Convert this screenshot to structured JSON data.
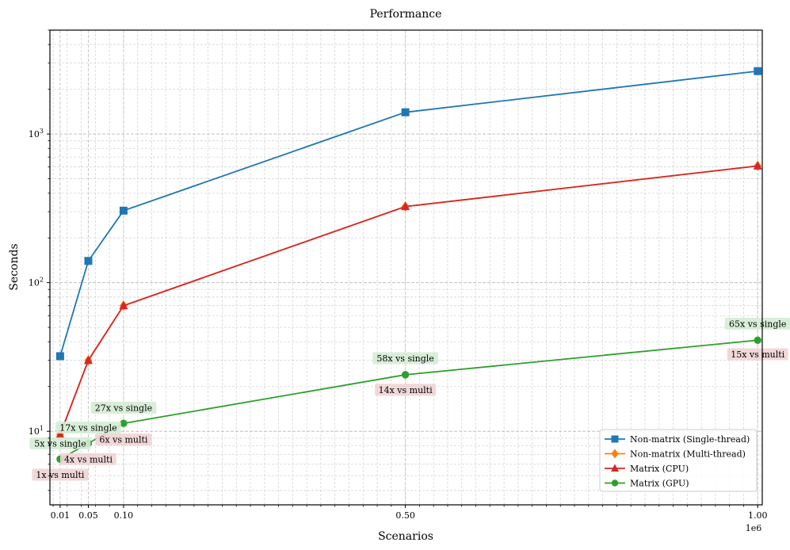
{
  "chart_data": {
    "type": "line",
    "title": "Performance",
    "xlabel": "Scenarios",
    "ylabel": "Seconds",
    "x_offset_label": "1e6",
    "x": [
      0.01,
      0.05,
      0.1,
      0.5,
      1.0
    ],
    "x_tick_labels": [
      "0.01",
      "0.05",
      "0.10",
      "0.50",
      "1.00"
    ],
    "xlim": [
      -0.0045,
      1.0065
    ],
    "yscale": "log",
    "ylim": [
      3.2,
      5000
    ],
    "y_major_ticks": [
      {
        "value": 10,
        "base": "10",
        "exp": "1"
      },
      {
        "value": 100,
        "base": "10",
        "exp": "2"
      },
      {
        "value": 1000,
        "base": "10",
        "exp": "3"
      }
    ],
    "grid": true,
    "legend_position": "lower-right",
    "series": [
      {
        "name": "Non-matrix (Single-thread)",
        "color": "#1f77b4",
        "marker": "square",
        "values": [
          32,
          140,
          305,
          1400,
          2650
        ]
      },
      {
        "name": "Non-matrix (Multi-thread)",
        "color": "#ff7f0e",
        "marker": "diamond",
        "values": [
          9.5,
          30,
          70,
          325,
          610
        ]
      },
      {
        "name": "Matrix (CPU)",
        "color": "#d62728",
        "marker": "triangle",
        "values": [
          9.5,
          30,
          70,
          325,
          610
        ]
      },
      {
        "name": "Matrix (GPU)",
        "color": "#2ca02c",
        "marker": "circle",
        "values": [
          6.5,
          8.3,
          11.3,
          24,
          41
        ]
      }
    ],
    "annotations": {
      "vs_single": {
        "color": "#d4ecd4",
        "items": [
          {
            "text": "5x vs single",
            "x": 0.01,
            "y": 8.3
          },
          {
            "text": "17x vs single",
            "x": 0.05,
            "y": 10.6
          },
          {
            "text": "27x vs single",
            "x": 0.1,
            "y": 14.4
          },
          {
            "text": "58x vs single",
            "x": 0.5,
            "y": 31
          },
          {
            "text": "65x vs single",
            "x": 1.0,
            "y": 53
          }
        ]
      },
      "vs_multi": {
        "color": "#f0d4d4",
        "items": [
          {
            "text": "1x vs multi",
            "x": 0.01,
            "y": 5.1
          },
          {
            "text": "4x vs multi",
            "x": 0.05,
            "y": 6.5
          },
          {
            "text": "6x vs multi",
            "x": 0.1,
            "y": 8.8
          },
          {
            "text": "14x vs multi",
            "x": 0.5,
            "y": 19
          },
          {
            "text": "15x vs multi",
            "x": 1.0,
            "y": 33
          }
        ]
      }
    }
  }
}
